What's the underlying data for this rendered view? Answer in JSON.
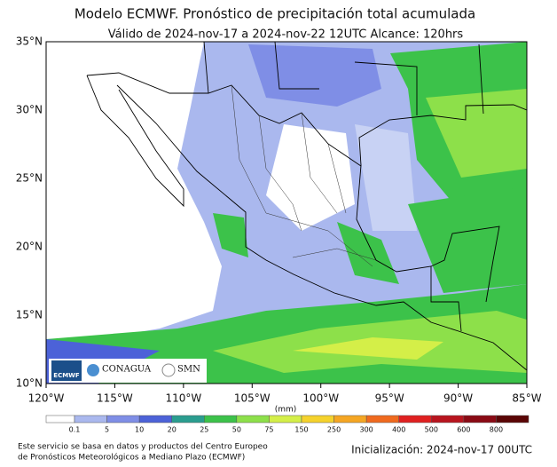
{
  "header": {
    "title": "Modelo ECMWF. Pronóstico de precipitación total acumulada",
    "subtitle": "Válido de 2024-nov-17 a 2024-nov-22 12UTC   Alcance: 120hrs"
  },
  "map": {
    "lat_labels": [
      "35°N",
      "30°N",
      "25°N",
      "20°N",
      "15°N",
      "10°N"
    ],
    "lon_labels": [
      "120°W",
      "115°W",
      "110°W",
      "105°W",
      "100°W",
      "95°W",
      "90°W",
      "85°W"
    ]
  },
  "logos": {
    "ecmwf": "ECMWF",
    "conagua": "CONAGUA",
    "smn": "SMN"
  },
  "colorbar": {
    "unit": "(mm)",
    "levels": [
      0.1,
      5,
      10,
      20,
      25,
      50,
      75,
      150,
      250,
      300,
      400,
      500,
      600,
      800
    ],
    "colors": [
      "#ffffff",
      "#aab8ee",
      "#7f8ee6",
      "#4c62d8",
      "#2a9d8f",
      "#3cc24a",
      "#8de04a",
      "#d4ef48",
      "#f5d22c",
      "#f5a623",
      "#f06a1e",
      "#e02020",
      "#b8141e",
      "#8a0a14",
      "#5a0505"
    ]
  },
  "footer": {
    "left_line1": "Este servicio se basa en datos y productos del Centro Europeo",
    "left_line2": "de Pronósticos Meteorológicos a Mediano Plazo (ECMWF)",
    "right": "Inicialización: 2024-nov-17 00UTC"
  }
}
